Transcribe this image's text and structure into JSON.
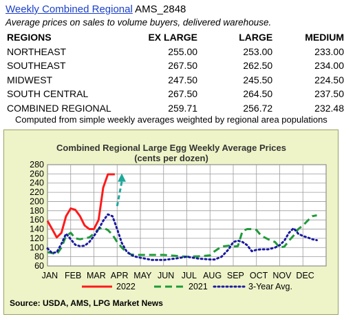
{
  "header": {
    "report_link": "Weekly Combined Regional",
    "report_code": "AMS_2848",
    "subtitle": "Average prices on sales to volume buyers, delivered warehouse."
  },
  "table": {
    "headers": [
      "REGIONS",
      "EX LARGE",
      "LARGE",
      "MEDIUM"
    ],
    "rows": [
      [
        "NORTHEAST",
        "255.00",
        "253.00",
        "233.00"
      ],
      [
        "SOUTHEAST",
        "267.50",
        "262.50",
        "234.00"
      ],
      [
        "MIDWEST",
        "247.50",
        "245.50",
        "224.50"
      ],
      [
        "SOUTH CENTRAL",
        "267.50",
        "264.50",
        "237.50"
      ],
      [
        "COMBINED REGIONAL",
        "259.71",
        "256.72",
        "232.48"
      ]
    ]
  },
  "computed_note": "Computed from simple weekly averages weighted by regional area populations",
  "source": "Source: USDA, AMS, LPG  Market News",
  "chart_data": {
    "type": "line",
    "title": "Combined Regional Large Egg Weekly Average Prices",
    "subtitle": "(cents per dozen)",
    "categories": [
      "JAN",
      "FEB",
      "MAR",
      "APR",
      "MAY",
      "JUN",
      "JUL",
      "AUG",
      "SEP",
      "OCT",
      "NOV",
      "DEC"
    ],
    "ylim": [
      60,
      280
    ],
    "yticks": [
      60,
      80,
      100,
      120,
      140,
      160,
      180,
      200,
      220,
      240,
      260,
      280
    ],
    "grid": true,
    "legend": "bottom",
    "colors": {
      "plot_bg": "#ffffff",
      "panel_bg": "#eef4c8",
      "grid": "#9a9a9a"
    },
    "series": [
      {
        "name": "2022",
        "color": "#ff1a1a",
        "style": "solid",
        "x": [
          0,
          0.2,
          0.4,
          0.6,
          0.8,
          1.0,
          1.2,
          1.4,
          1.6,
          1.8,
          2.0,
          2.2,
          2.4,
          2.6,
          2.8,
          2.9
        ],
        "y": [
          158,
          140,
          122,
          132,
          168,
          185,
          182,
          168,
          148,
          140,
          140,
          160,
          230,
          259,
          259,
          259
        ]
      },
      {
        "name": "2021",
        "color": "#1f9a3a",
        "style": "dashed",
        "x": [
          0,
          0.2,
          0.4,
          0.6,
          0.8,
          1.0,
          1.2,
          1.4,
          1.6,
          1.8,
          2.0,
          2.2,
          2.4,
          2.6,
          2.8,
          3.0,
          3.2,
          3.4,
          3.6,
          3.8,
          4.0,
          4.5,
          5.0,
          5.5,
          6.0,
          6.5,
          7.0,
          7.2,
          7.5,
          7.8,
          8.0,
          8.2,
          8.4,
          8.6,
          8.8,
          9.0,
          9.2,
          9.5,
          9.8,
          10.0,
          10.2,
          10.4,
          10.6,
          10.8,
          11.0,
          11.2,
          11.4,
          11.6
        ],
        "y": [
          90,
          88,
          85,
          100,
          125,
          132,
          120,
          118,
          120,
          122,
          130,
          140,
          143,
          138,
          128,
          112,
          100,
          90,
          85,
          84,
          84,
          84,
          84,
          82,
          80,
          81,
          83,
          92,
          102,
          104,
          102,
          103,
          136,
          140,
          140,
          138,
          126,
          118,
          112,
          100,
          102,
          115,
          126,
          140,
          148,
          158,
          168,
          170
        ]
      },
      {
        "name": "3-Year Avg.",
        "color": "#1a1aa0",
        "style": "dotted",
        "x": [
          0,
          0.2,
          0.4,
          0.6,
          0.8,
          1.0,
          1.2,
          1.4,
          1.6,
          1.8,
          2.0,
          2.2,
          2.4,
          2.6,
          2.8,
          3.0,
          3.2,
          3.4,
          3.6,
          3.8,
          4.0,
          4.5,
          5.0,
          5.5,
          6.0,
          6.5,
          7.0,
          7.2,
          7.5,
          7.8,
          8.0,
          8.2,
          8.4,
          8.6,
          8.8,
          9.0,
          9.2,
          9.5,
          9.8,
          10.0,
          10.2,
          10.4,
          10.6,
          10.8,
          11.0,
          11.2,
          11.4,
          11.6
        ],
        "y": [
          98,
          88,
          90,
          108,
          130,
          118,
          106,
          103,
          104,
          112,
          125,
          140,
          158,
          172,
          168,
          140,
          110,
          92,
          84,
          80,
          78,
          73,
          73,
          76,
          80,
          76,
          74,
          74,
          80,
          96,
          112,
          115,
          112,
          105,
          92,
          95,
          96,
          96,
          100,
          105,
          115,
          132,
          142,
          130,
          125,
          122,
          118,
          116
        ]
      }
    ],
    "annotation": {
      "type": "dashed-arrow",
      "color": "#1ea89a",
      "x_from": 3.0,
      "y_from": 190,
      "x_to": 3.2,
      "y_to": 258
    }
  }
}
